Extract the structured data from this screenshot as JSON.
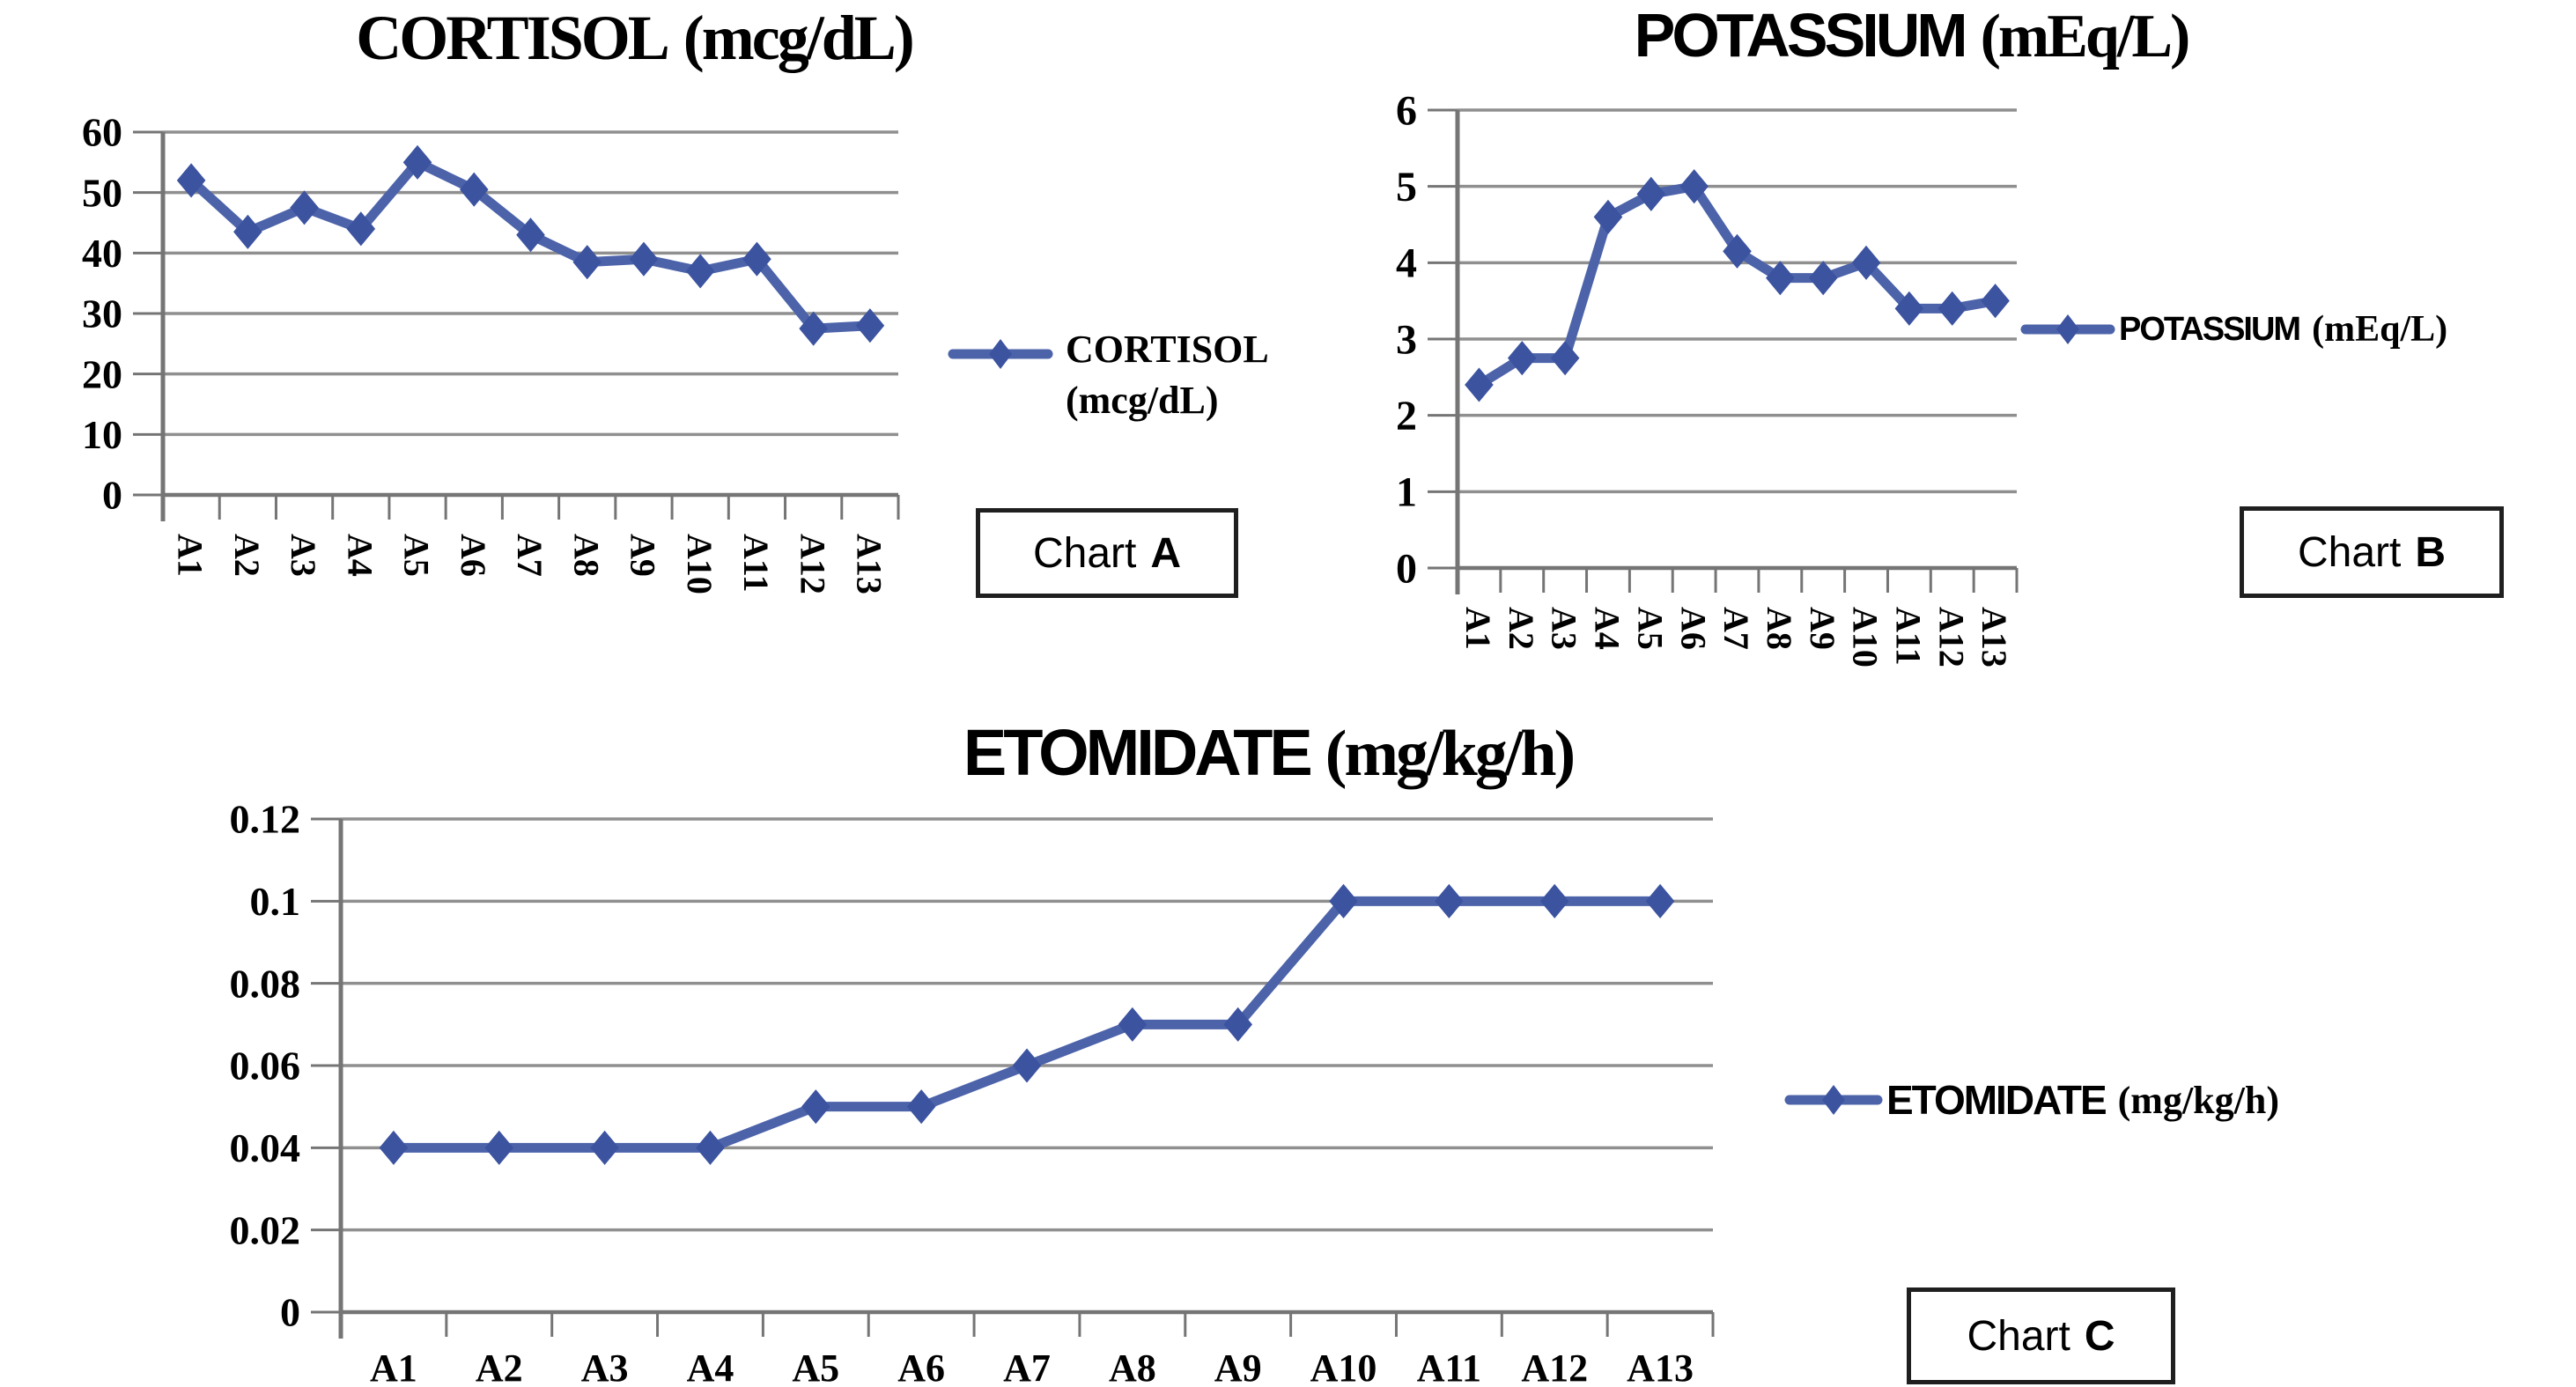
{
  "page": {
    "background": "#ffffff"
  },
  "colors": {
    "series_line": "#4c63aa",
    "series_marker": "#3c53a0",
    "gridline": "#8f8f8f",
    "axis": "#757575",
    "text": "#000000",
    "caption_border": "#1f1f1f"
  },
  "chart_data": [
    {
      "id": "chart-a",
      "type": "line",
      "title": "CORTISOL (mcg/dL)",
      "title_main": "CORTISOL",
      "title_unit": "(mcg/dL)",
      "categories": [
        "A1",
        "A2",
        "A3",
        "A4",
        "A5",
        "A6",
        "A7",
        "A8",
        "A9",
        "A10",
        "A11",
        "A12",
        "A13"
      ],
      "series": [
        {
          "name": "CORTISOL (mcg/dL)",
          "values": [
            52,
            43.5,
            47.5,
            44,
            55,
            50.5,
            43,
            38.5,
            39,
            37,
            39,
            27.5,
            28
          ]
        }
      ],
      "ylim": [
        0,
        60
      ],
      "yticks": [
        0,
        10,
        20,
        30,
        40,
        50,
        60
      ],
      "ytick_labels": [
        "0",
        "10",
        "20",
        "30",
        "40",
        "50",
        "60"
      ],
      "grid": true,
      "legend_position": "right",
      "x_label_rotation": 90,
      "marker": "diamond",
      "legend": {
        "line1": "CORTISOL",
        "line2": "(mcg/dL)"
      },
      "caption": {
        "word": "Chart",
        "letter": "A"
      }
    },
    {
      "id": "chart-b",
      "type": "line",
      "title": "POTASSIUM (mEq/L)",
      "title_main": "POTASSIUM",
      "title_unit": "(mEq/L)",
      "categories": [
        "A1",
        "A2",
        "A3",
        "A4",
        "A5",
        "A6",
        "A7",
        "A8",
        "A9",
        "A10",
        "A11",
        "A12",
        "A13"
      ],
      "series": [
        {
          "name": "POTASSIUM (mEq/L)",
          "values": [
            2.4,
            2.75,
            2.75,
            4.6,
            4.9,
            5,
            4.15,
            3.8,
            3.8,
            4,
            3.4,
            3.4,
            3.5
          ]
        }
      ],
      "ylim": [
        0,
        6
      ],
      "yticks": [
        0,
        1,
        2,
        3,
        4,
        5,
        6
      ],
      "ytick_labels": [
        "0",
        "1",
        "2",
        "3",
        "4",
        "5",
        "6"
      ],
      "grid": true,
      "legend_position": "right",
      "x_label_rotation": 90,
      "marker": "diamond",
      "legend": {
        "text_main": "POTASSIUM",
        "text_unit": "(mEq/L)"
      },
      "caption": {
        "word": "Chart",
        "letter": "B"
      }
    },
    {
      "id": "chart-c",
      "type": "line",
      "title": "ETOMIDATE (mg/kg/h)",
      "title_main": "ETOMIDATE",
      "title_unit": "(mg/kg/h)",
      "categories": [
        "A1",
        "A2",
        "A3",
        "A4",
        "A5",
        "A6",
        "A7",
        "A8",
        "A9",
        "A10",
        "A11",
        "A12",
        "A13"
      ],
      "series": [
        {
          "name": "ETOMIDATE (mg/kg/h)",
          "values": [
            0.04,
            0.04,
            0.04,
            0.04,
            0.05,
            0.05,
            0.06,
            0.07,
            0.07,
            0.1,
            0.1,
            0.1,
            0.1
          ]
        }
      ],
      "ylim": [
        0,
        0.12
      ],
      "yticks": [
        0,
        0.02,
        0.04,
        0.06,
        0.08,
        0.1,
        0.12
      ],
      "ytick_labels": [
        "0",
        "0.02",
        "0.04",
        "0.06",
        "0.08",
        "0.1",
        "0.12"
      ],
      "grid": true,
      "legend_position": "right",
      "x_label_rotation": 0,
      "marker": "diamond",
      "legend": {
        "text_main": "ETOMIDATE",
        "text_unit": "(mg/kg/h)"
      },
      "caption": {
        "word": "Chart",
        "letter": "C"
      }
    }
  ]
}
